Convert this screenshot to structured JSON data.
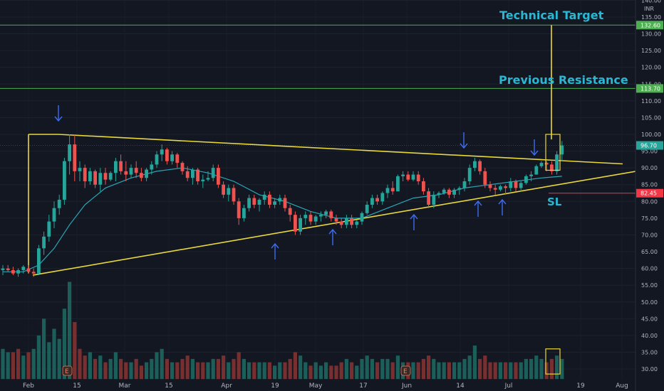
{
  "chart_data": {
    "type": "candlestick",
    "currency": "INR",
    "ylim": [
      27,
      142
    ],
    "y_ticks": [
      "140.00",
      "135.00",
      "130.00",
      "125.00",
      "120.00",
      "115.00",
      "110.00",
      "105.00",
      "100.00",
      "95.00",
      "90.00",
      "85.00",
      "80.00",
      "75.00",
      "70.00",
      "65.00",
      "60.00",
      "55.00",
      "50.00",
      "45.00",
      "40.00",
      "35.00",
      "30.00"
    ],
    "x_ticks": [
      "Feb",
      "15",
      "Mar",
      "15",
      "Apr",
      "19",
      "May",
      "17",
      "Jun",
      "14",
      "Jul",
      "19",
      "Aug"
    ],
    "price_labels": [
      {
        "id": "target",
        "value": "132.60",
        "color": "#4caf50"
      },
      {
        "id": "resistance",
        "value": "113.70",
        "color": "#4caf50"
      },
      {
        "id": "current",
        "value": "96.70",
        "color": "#26a69a"
      },
      {
        "id": "stoploss",
        "value": "82.45",
        "color": "#f23645"
      }
    ],
    "annotations": {
      "technical_target": "Technical Target",
      "previous_resistance": "Previous Resistance",
      "stop_loss": "SL"
    },
    "colors": {
      "up": "#26a69a",
      "down": "#ef5350",
      "trend": "#e8d83c",
      "ma": "#2aa6b8",
      "arrow": "#3e6cf0",
      "text": "#2ab7d3",
      "level": "#4caf50"
    },
    "candles": [
      [
        59.5,
        61,
        58,
        60
      ],
      [
        60,
        61,
        59,
        59.5
      ],
      [
        59.5,
        60.5,
        58,
        58.5
      ],
      [
        58.5,
        60,
        57.5,
        59.5
      ],
      [
        59.5,
        61,
        58.5,
        60.5
      ],
      [
        60,
        61,
        58.5,
        59
      ],
      [
        59,
        60,
        57.5,
        58.5
      ],
      [
        58.5,
        67,
        58,
        66
      ],
      [
        66,
        71,
        64,
        69.5
      ],
      [
        69.5,
        76,
        68,
        74
      ],
      [
        74,
        80,
        72,
        78
      ],
      [
        78,
        82,
        76,
        80.5
      ],
      [
        80.5,
        93,
        79,
        92
      ],
      [
        92,
        100,
        88,
        97
      ],
      [
        97,
        100,
        86,
        89
      ],
      [
        89,
        92,
        86,
        90
      ],
      [
        90,
        91,
        84,
        86
      ],
      [
        86,
        90,
        85,
        89
      ],
      [
        89,
        89.5,
        84,
        85
      ],
      [
        85,
        90,
        83,
        88.5
      ],
      [
        88.5,
        90,
        85,
        86.5
      ],
      [
        86.5,
        89,
        86,
        88.5
      ],
      [
        88.5,
        93,
        86,
        92
      ],
      [
        92,
        94,
        88,
        89
      ],
      [
        89,
        92,
        86,
        88
      ],
      [
        88,
        91,
        87,
        90
      ],
      [
        90,
        92,
        87,
        88.5
      ],
      [
        88.5,
        90,
        86,
        87
      ],
      [
        87,
        90,
        86,
        89.5
      ],
      [
        89.5,
        92,
        88,
        91
      ],
      [
        91,
        95,
        90,
        94
      ],
      [
        94,
        97,
        92,
        95.5
      ],
      [
        95.5,
        96,
        91,
        92
      ],
      [
        92,
        95,
        91,
        94
      ],
      [
        94,
        94.5,
        90,
        91.5
      ],
      [
        91.5,
        92,
        88,
        89
      ],
      [
        89,
        90.5,
        86,
        87
      ],
      [
        87,
        90,
        85,
        89.5
      ],
      [
        89.5,
        90,
        85,
        86
      ],
      [
        86,
        88,
        84,
        86.5
      ],
      [
        86.5,
        89,
        86,
        87
      ],
      [
        87,
        91,
        86,
        90
      ],
      [
        90,
        91,
        84,
        85
      ],
      [
        85,
        86,
        81,
        82
      ],
      [
        82,
        85,
        80,
        84
      ],
      [
        84,
        85,
        79,
        80
      ],
      [
        80,
        81,
        73,
        75
      ],
      [
        75,
        79,
        74,
        78
      ],
      [
        78,
        82,
        77,
        81
      ],
      [
        81,
        82,
        78,
        79
      ],
      [
        79,
        81,
        77,
        80.5
      ],
      [
        80.5,
        83,
        79,
        82
      ],
      [
        82,
        83,
        78,
        79
      ],
      [
        79,
        81,
        78,
        80
      ],
      [
        80,
        82,
        79,
        81
      ],
      [
        81,
        82,
        77,
        78
      ],
      [
        78,
        79,
        74,
        76
      ],
      [
        76,
        77,
        70,
        71
      ],
      [
        71,
        76,
        70,
        75
      ],
      [
        75,
        77,
        73,
        76
      ],
      [
        76,
        77,
        73,
        74
      ],
      [
        74,
        76,
        73,
        75.5
      ],
      [
        75.5,
        77,
        74,
        76
      ],
      [
        76,
        77.5,
        75,
        77
      ],
      [
        77,
        77.5,
        74,
        75
      ],
      [
        75,
        76,
        73,
        74
      ],
      [
        74,
        75,
        72,
        73
      ],
      [
        73,
        76,
        72,
        75
      ],
      [
        75,
        76,
        72,
        73
      ],
      [
        73,
        74.5,
        72,
        74
      ],
      [
        74,
        77,
        73,
        76.5
      ],
      [
        76.5,
        80,
        76,
        79
      ],
      [
        79,
        82,
        78,
        81
      ],
      [
        81,
        82,
        79,
        80
      ],
      [
        80,
        83,
        79,
        82.5
      ],
      [
        82.5,
        85,
        81,
        84
      ],
      [
        84,
        86,
        82,
        83
      ],
      [
        83,
        88,
        83,
        87.5
      ],
      [
        87.5,
        89,
        86,
        88
      ],
      [
        88,
        89,
        86,
        86.5
      ],
      [
        86.5,
        89,
        86,
        88
      ],
      [
        88,
        89,
        85,
        86
      ],
      [
        86,
        87,
        82,
        83
      ],
      [
        83,
        84,
        78,
        79
      ],
      [
        79,
        83,
        78,
        82
      ],
      [
        82,
        83,
        81,
        82.5
      ],
      [
        82.5,
        84,
        82,
        83.5
      ],
      [
        83.5,
        84,
        81,
        82
      ],
      [
        82,
        84,
        81,
        83.5
      ],
      [
        83.5,
        84.5,
        82,
        84
      ],
      [
        84,
        87,
        83,
        86
      ],
      [
        86,
        91,
        85,
        90
      ],
      [
        90,
        93,
        89,
        92
      ],
      [
        92,
        92.5,
        88,
        89
      ],
      [
        89,
        90,
        84,
        85
      ],
      [
        85,
        86,
        83,
        84
      ],
      [
        84,
        85,
        82,
        83.5
      ],
      [
        83.5,
        85,
        83,
        84.5
      ],
      [
        84.5,
        85,
        82,
        84
      ],
      [
        84,
        87,
        83,
        86
      ],
      [
        86,
        86.5,
        83,
        84
      ],
      [
        84,
        86,
        83,
        85.5
      ],
      [
        85.5,
        88,
        85,
        87.5
      ],
      [
        87.5,
        89,
        86,
        88
      ],
      [
        88,
        91,
        88,
        90.5
      ],
      [
        90.5,
        92,
        90,
        91.5
      ],
      [
        91.5,
        92,
        89,
        91
      ],
      [
        91,
        92,
        88,
        89
      ],
      [
        89,
        95,
        88,
        94
      ],
      [
        94,
        98,
        92,
        96.7
      ]
    ],
    "ma": [
      [
        0,
        59
      ],
      [
        4,
        59
      ],
      [
        7,
        61
      ],
      [
        10,
        66
      ],
      [
        13,
        73
      ],
      [
        16,
        79
      ],
      [
        20,
        84
      ],
      [
        25,
        87
      ],
      [
        30,
        89
      ],
      [
        35,
        90
      ],
      [
        40,
        88.5
      ],
      [
        45,
        86
      ],
      [
        50,
        82
      ],
      [
        55,
        80
      ],
      [
        60,
        77
      ],
      [
        65,
        75
      ],
      [
        70,
        75
      ],
      [
        75,
        78
      ],
      [
        80,
        81
      ],
      [
        85,
        82
      ],
      [
        90,
        84
      ],
      [
        95,
        85
      ],
      [
        100,
        86
      ],
      [
        105,
        87
      ],
      [
        109,
        87.5
      ]
    ],
    "volume": [
      [
        36,
        1
      ],
      [
        35,
        1
      ],
      [
        35,
        0
      ],
      [
        36,
        0
      ],
      [
        34,
        1
      ],
      [
        35,
        0
      ],
      [
        36,
        1
      ],
      [
        40,
        1
      ],
      [
        45,
        1
      ],
      [
        38,
        1
      ],
      [
        42,
        1
      ],
      [
        39,
        1
      ],
      [
        48,
        1
      ],
      [
        56,
        1
      ],
      [
        44,
        0
      ],
      [
        36,
        0
      ],
      [
        34,
        0
      ],
      [
        35,
        1
      ],
      [
        33,
        0
      ],
      [
        34,
        1
      ],
      [
        32,
        0
      ],
      [
        33,
        1
      ],
      [
        35,
        1
      ],
      [
        33,
        0
      ],
      [
        32,
        0
      ],
      [
        32,
        1
      ],
      [
        33,
        0
      ],
      [
        31,
        0
      ],
      [
        32,
        1
      ],
      [
        33,
        1
      ],
      [
        35,
        1
      ],
      [
        36,
        1
      ],
      [
        33,
        0
      ],
      [
        32,
        1
      ],
      [
        32,
        0
      ],
      [
        33,
        0
      ],
      [
        34,
        0
      ],
      [
        33,
        1
      ],
      [
        32,
        0
      ],
      [
        32,
        0
      ],
      [
        32,
        1
      ],
      [
        33,
        1
      ],
      [
        33,
        0
      ],
      [
        34,
        0
      ],
      [
        32,
        1
      ],
      [
        33,
        0
      ],
      [
        35,
        0
      ],
      [
        33,
        1
      ],
      [
        32,
        1
      ],
      [
        32,
        0
      ],
      [
        32,
        1
      ],
      [
        32,
        1
      ],
      [
        32,
        0
      ],
      [
        31,
        1
      ],
      [
        32,
        1
      ],
      [
        32,
        0
      ],
      [
        33,
        0
      ],
      [
        35,
        0
      ],
      [
        34,
        1
      ],
      [
        32,
        1
      ],
      [
        31,
        0
      ],
      [
        32,
        1
      ],
      [
        31,
        1
      ],
      [
        32,
        1
      ],
      [
        31,
        0
      ],
      [
        31,
        0
      ],
      [
        32,
        0
      ],
      [
        33,
        1
      ],
      [
        32,
        0
      ],
      [
        31,
        1
      ],
      [
        33,
        1
      ],
      [
        34,
        1
      ],
      [
        33,
        1
      ],
      [
        32,
        0
      ],
      [
        33,
        1
      ],
      [
        33,
        1
      ],
      [
        32,
        0
      ],
      [
        34,
        1
      ],
      [
        32,
        1
      ],
      [
        32,
        0
      ],
      [
        32,
        1
      ],
      [
        32,
        0
      ],
      [
        33,
        0
      ],
      [
        34,
        0
      ],
      [
        33,
        1
      ],
      [
        32,
        1
      ],
      [
        32,
        1
      ],
      [
        32,
        0
      ],
      [
        32,
        1
      ],
      [
        32,
        1
      ],
      [
        33,
        1
      ],
      [
        34,
        1
      ],
      [
        37,
        1
      ],
      [
        33,
        0
      ],
      [
        34,
        0
      ],
      [
        32,
        0
      ],
      [
        32,
        0
      ],
      [
        32,
        1
      ],
      [
        32,
        0
      ],
      [
        32,
        1
      ],
      [
        32,
        0
      ],
      [
        32,
        1
      ],
      [
        33,
        1
      ],
      [
        33,
        1
      ],
      [
        34,
        1
      ],
      [
        33,
        1
      ],
      [
        32,
        0
      ],
      [
        33,
        0
      ],
      [
        34,
        1
      ],
      [
        33,
        1
      ]
    ]
  }
}
